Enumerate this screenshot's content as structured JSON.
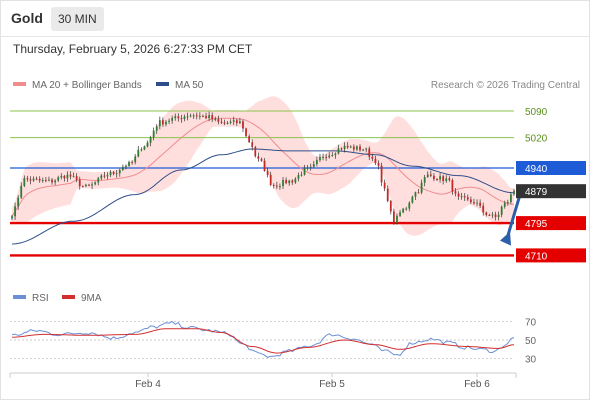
{
  "header": {
    "symbol": "Gold",
    "timeframe": "30 MIN",
    "datetime": "Thursday, February 5, 2026 6:27:33 PM CET"
  },
  "legend": {
    "ma20": "MA 20 + Bollinger Bands",
    "ma50": "MA 50",
    "copyright": "Research © 2026 Trading Central"
  },
  "rsi_legend": {
    "rsi": "RSI",
    "ma": "9MA"
  },
  "colors": {
    "up": "#2e7d32",
    "down": "#c62828",
    "resistance": "#8bc34a",
    "pivot": "#1e5bd6",
    "support": "#e50000",
    "ma50": "#2d4e8a",
    "ma20": "#f08c8c",
    "band": "#ffd3d3",
    "rsi": "#6a8fd6",
    "rsi_ma": "#d32f2f"
  },
  "chart_data": [
    {
      "type": "candlestick",
      "title": "Gold 30 MIN",
      "x_ticks": [
        "Feb 4",
        "Feb 5",
        "Feb 6"
      ],
      "ylim": [
        4640,
        5140
      ],
      "last_price": 4879,
      "levels": [
        {
          "value": 5090,
          "label": "5090",
          "kind": "resistance"
        },
        {
          "value": 5020,
          "label": "5020",
          "kind": "resistance"
        },
        {
          "value": 4940,
          "label": "4940",
          "kind": "pivot"
        },
        {
          "value": 4879,
          "label": "4879",
          "kind": "last"
        },
        {
          "value": 4795,
          "label": "4795",
          "kind": "support"
        },
        {
          "value": 4710,
          "label": "4710",
          "kind": "support"
        }
      ],
      "projection": {
        "from": 4875,
        "to": 4720,
        "direction": "down"
      },
      "price_keypoints": [
        {
          "i": 0,
          "v": 4820
        },
        {
          "i": 4,
          "v": 4910
        },
        {
          "i": 12,
          "v": 4905
        },
        {
          "i": 18,
          "v": 4920
        },
        {
          "i": 24,
          "v": 4890
        },
        {
          "i": 32,
          "v": 4925
        },
        {
          "i": 38,
          "v": 4950
        },
        {
          "i": 43,
          "v": 5000
        },
        {
          "i": 48,
          "v": 5060
        },
        {
          "i": 53,
          "v": 5070
        },
        {
          "i": 58,
          "v": 5080
        },
        {
          "i": 63,
          "v": 5075
        },
        {
          "i": 68,
          "v": 5058
        },
        {
          "i": 74,
          "v": 5060
        },
        {
          "i": 77,
          "v": 5010
        },
        {
          "i": 80,
          "v": 4960
        },
        {
          "i": 85,
          "v": 4895
        },
        {
          "i": 90,
          "v": 4905
        },
        {
          "i": 96,
          "v": 4935
        },
        {
          "i": 102,
          "v": 4975
        },
        {
          "i": 108,
          "v": 4995
        },
        {
          "i": 114,
          "v": 4990
        },
        {
          "i": 118,
          "v": 4960
        },
        {
          "i": 121,
          "v": 4880
        },
        {
          "i": 124,
          "v": 4800
        },
        {
          "i": 127,
          "v": 4830
        },
        {
          "i": 131,
          "v": 4875
        },
        {
          "i": 135,
          "v": 4920
        },
        {
          "i": 141,
          "v": 4910
        },
        {
          "i": 145,
          "v": 4860
        },
        {
          "i": 150,
          "v": 4850
        },
        {
          "i": 154,
          "v": 4820
        },
        {
          "i": 157,
          "v": 4810
        },
        {
          "i": 160,
          "v": 4845
        },
        {
          "i": 163,
          "v": 4875
        }
      ],
      "ma50_keypoints": [
        {
          "i": 0,
          "v": 4740
        },
        {
          "i": 20,
          "v": 4800
        },
        {
          "i": 40,
          "v": 4870
        },
        {
          "i": 55,
          "v": 4935
        },
        {
          "i": 68,
          "v": 4975
        },
        {
          "i": 78,
          "v": 4990
        },
        {
          "i": 90,
          "v": 4985
        },
        {
          "i": 105,
          "v": 4985
        },
        {
          "i": 118,
          "v": 4975
        },
        {
          "i": 130,
          "v": 4945
        },
        {
          "i": 145,
          "v": 4920
        },
        {
          "i": 163,
          "v": 4875
        }
      ]
    },
    {
      "type": "line",
      "title": "RSI",
      "ylim": [
        20,
        80
      ],
      "y_ticks": [
        70,
        50,
        30
      ],
      "series": [
        {
          "name": "RSI"
        },
        {
          "name": "9MA"
        }
      ],
      "rsi_keypoints": [
        {
          "i": 0,
          "v": 55
        },
        {
          "i": 8,
          "v": 60
        },
        {
          "i": 15,
          "v": 56
        },
        {
          "i": 25,
          "v": 58
        },
        {
          "i": 33,
          "v": 52
        },
        {
          "i": 40,
          "v": 58
        },
        {
          "i": 46,
          "v": 64
        },
        {
          "i": 52,
          "v": 68
        },
        {
          "i": 58,
          "v": 63
        },
        {
          "i": 64,
          "v": 60
        },
        {
          "i": 70,
          "v": 57
        },
        {
          "i": 75,
          "v": 45
        },
        {
          "i": 80,
          "v": 35
        },
        {
          "i": 84,
          "v": 32
        },
        {
          "i": 90,
          "v": 38
        },
        {
          "i": 97,
          "v": 44
        },
        {
          "i": 104,
          "v": 56
        },
        {
          "i": 110,
          "v": 52
        },
        {
          "i": 116,
          "v": 46
        },
        {
          "i": 121,
          "v": 38
        },
        {
          "i": 125,
          "v": 34
        },
        {
          "i": 130,
          "v": 47
        },
        {
          "i": 136,
          "v": 51
        },
        {
          "i": 142,
          "v": 47
        },
        {
          "i": 147,
          "v": 42
        },
        {
          "i": 152,
          "v": 40
        },
        {
          "i": 157,
          "v": 38
        },
        {
          "i": 160,
          "v": 45
        },
        {
          "i": 163,
          "v": 52
        }
      ],
      "rsi_ma_keypoints": [
        {
          "i": 0,
          "v": 53
        },
        {
          "i": 10,
          "v": 56
        },
        {
          "i": 25,
          "v": 55
        },
        {
          "i": 40,
          "v": 56
        },
        {
          "i": 50,
          "v": 62
        },
        {
          "i": 60,
          "v": 62
        },
        {
          "i": 68,
          "v": 58
        },
        {
          "i": 78,
          "v": 43
        },
        {
          "i": 86,
          "v": 36
        },
        {
          "i": 96,
          "v": 42
        },
        {
          "i": 108,
          "v": 50
        },
        {
          "i": 118,
          "v": 45
        },
        {
          "i": 126,
          "v": 40
        },
        {
          "i": 136,
          "v": 46
        },
        {
          "i": 148,
          "v": 43
        },
        {
          "i": 158,
          "v": 41
        },
        {
          "i": 163,
          "v": 45
        }
      ]
    }
  ]
}
